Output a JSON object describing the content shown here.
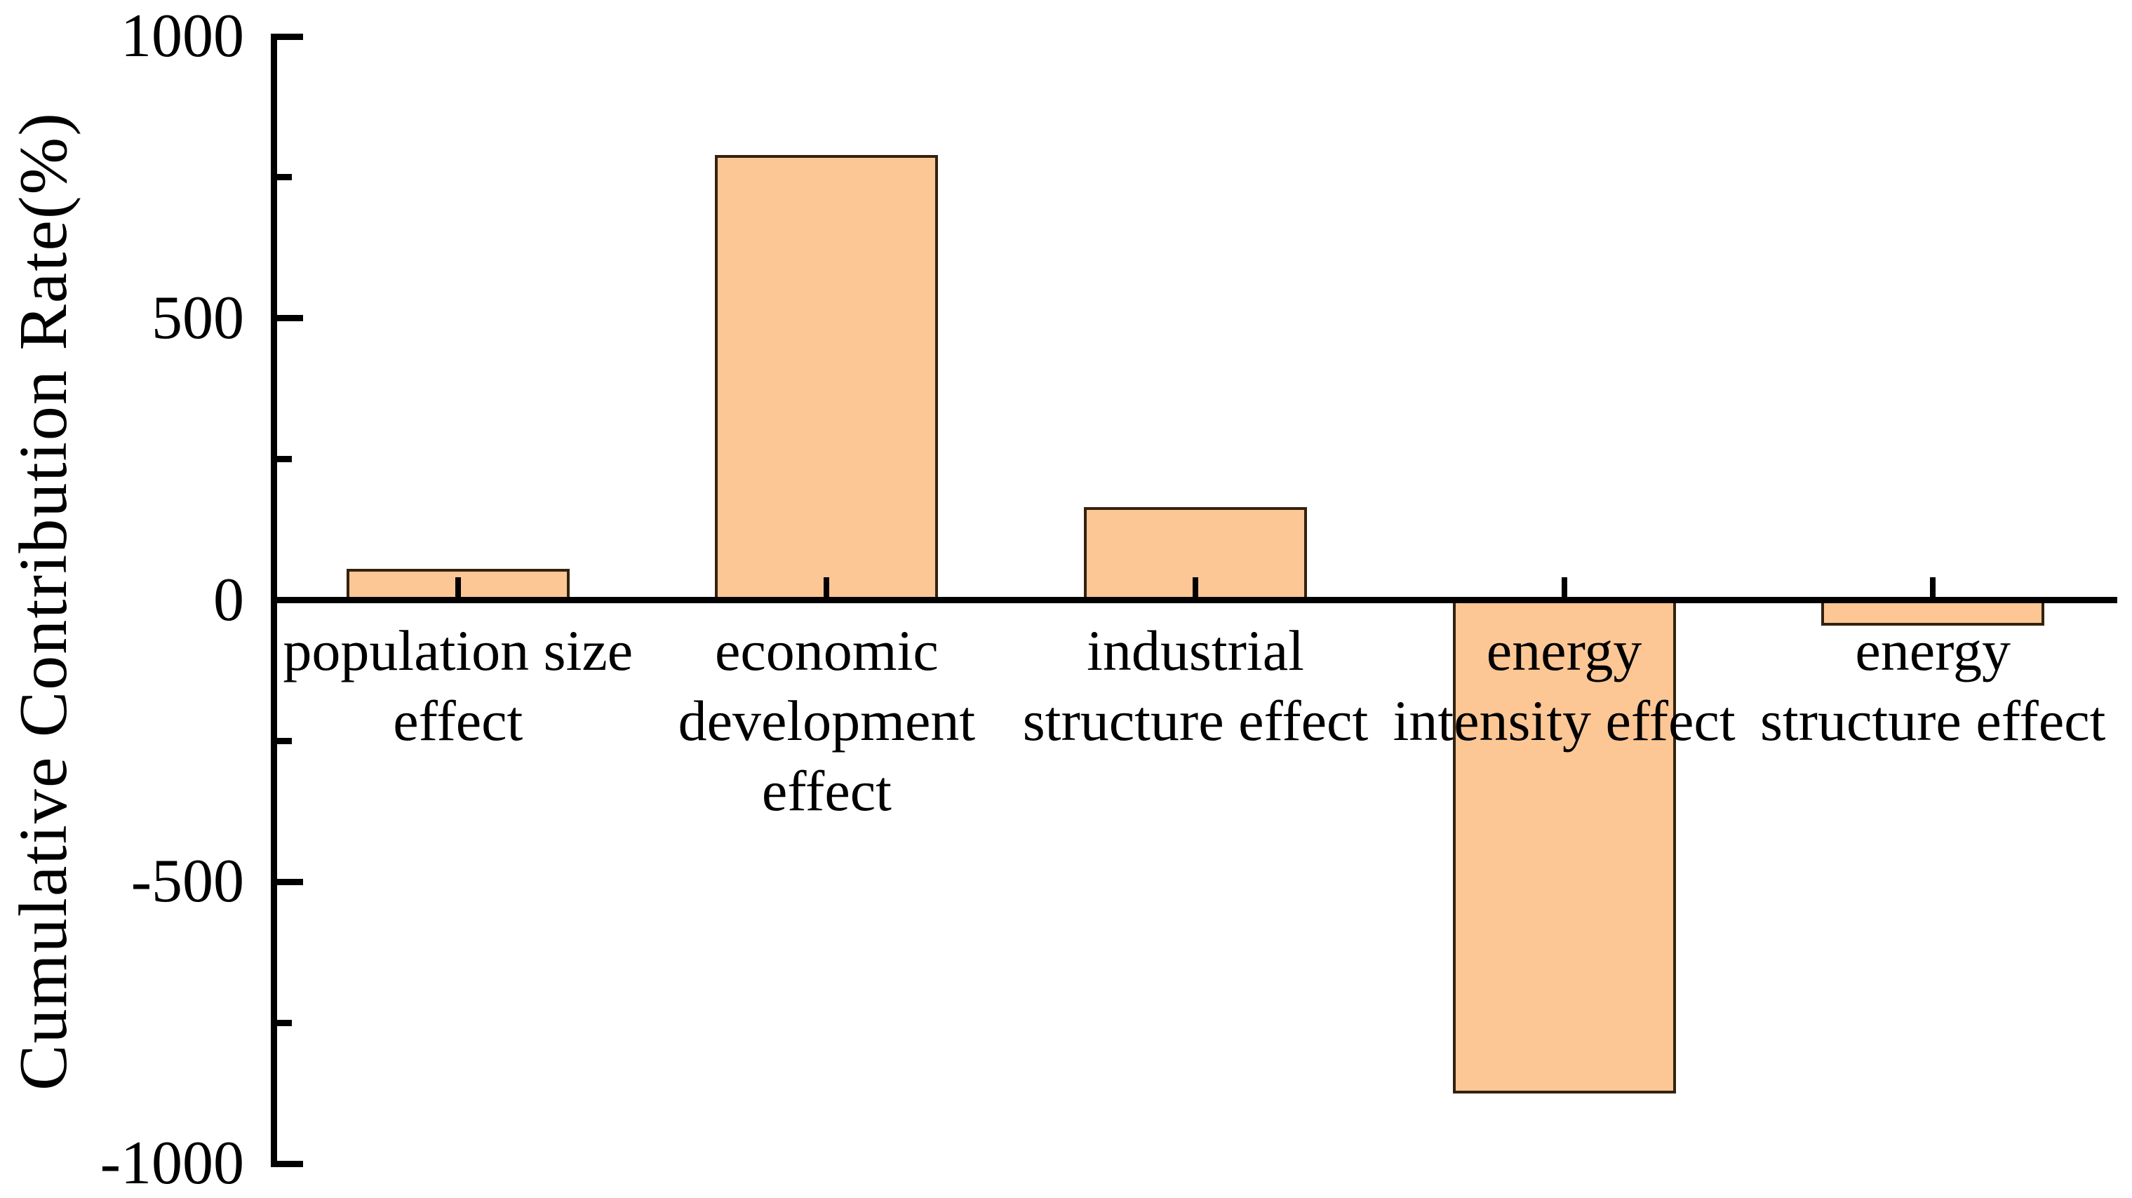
{
  "chart_data": {
    "type": "bar",
    "title": "",
    "xlabel": "",
    "ylabel": "Cumulative Contribution Rate(%)",
    "categories": [
      [
        "population size",
        "effect"
      ],
      [
        "economic",
        "development",
        "effect"
      ],
      [
        "industrial",
        "structure effect"
      ],
      [
        "energy",
        "intensity effect"
      ],
      [
        "energy",
        "structure effect"
      ]
    ],
    "values": [
      55,
      790,
      165,
      -870,
      -40
    ],
    "ylim": [
      -1000,
      1000
    ],
    "yticks_major": [
      1000,
      500,
      0,
      -500,
      -1000
    ],
    "ytick_labels": [
      "1000",
      "500",
      "0",
      "-500",
      "-1000"
    ],
    "yticks_minor": [
      750,
      250,
      -250,
      -750
    ],
    "tick_direction": "in",
    "grid": false,
    "bar_fill_color": "#FCC795",
    "bar_border_color": "#33220f",
    "axis_color": "#000000",
    "background_color": "#FFFFFF"
  }
}
